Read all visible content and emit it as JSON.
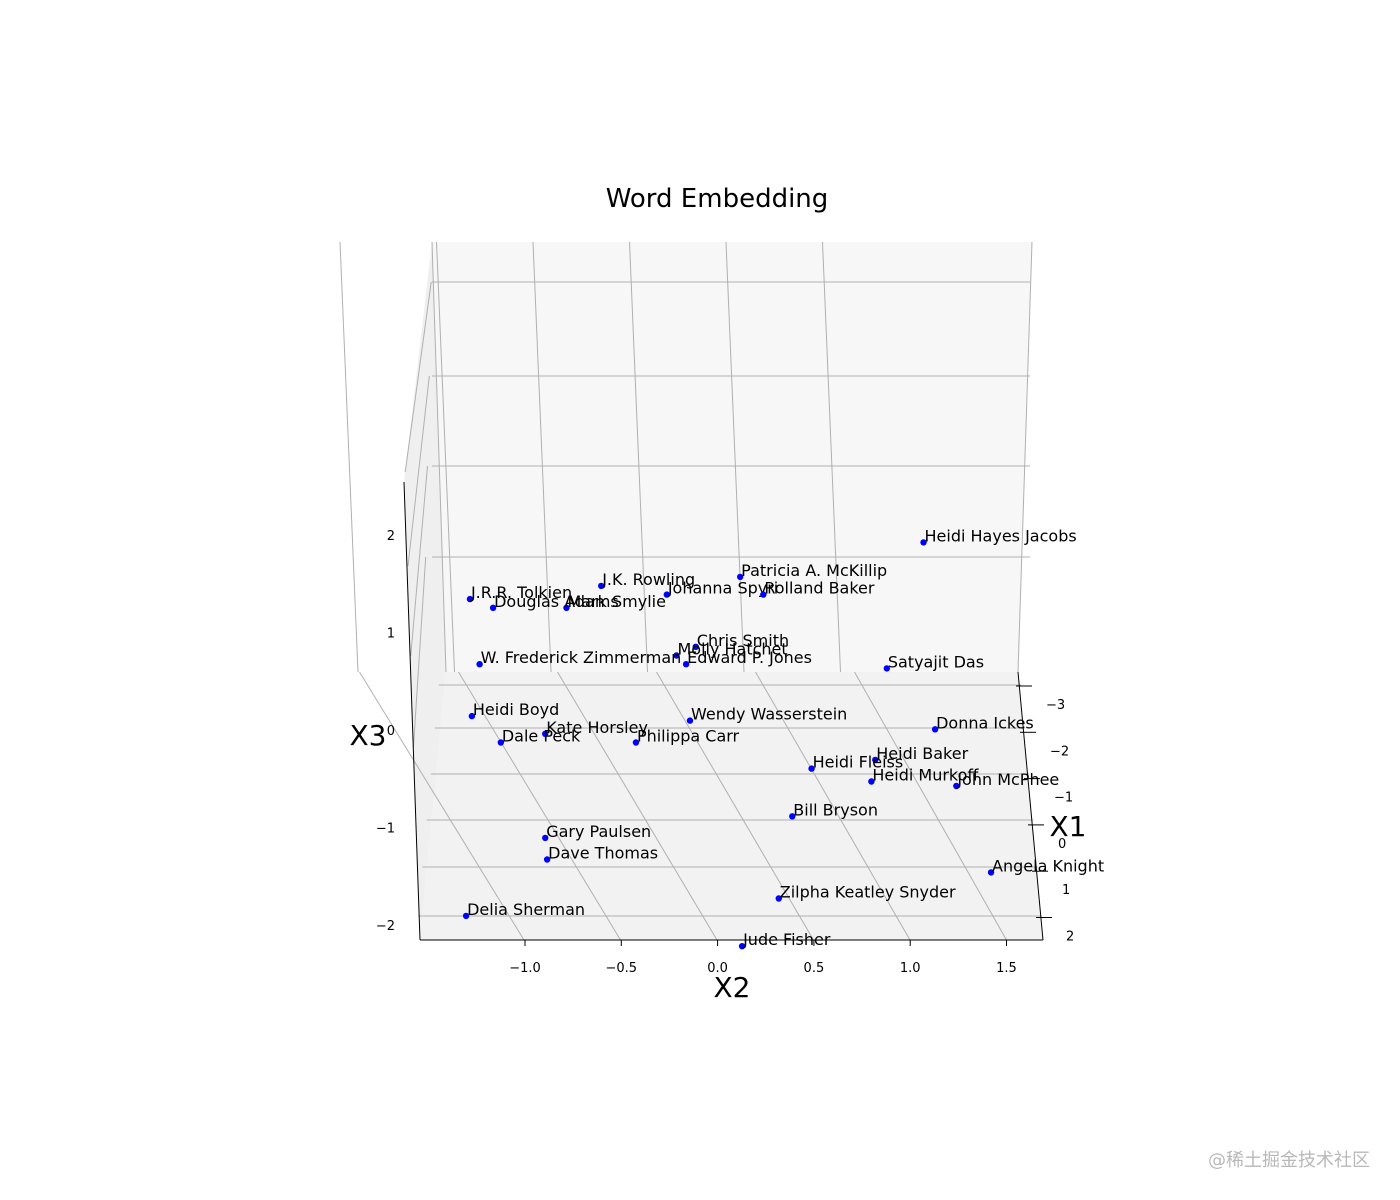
{
  "chart_data": {
    "type": "scatter",
    "projection": "3d",
    "title": "Word Embedding",
    "xlabel": "X1",
    "ylabel": "X2",
    "zlabel": "X3",
    "xlim": [
      -3,
      2
    ],
    "ylim": [
      -1.5,
      1.7
    ],
    "zlim": [
      -2,
      2.5
    ],
    "grid": true,
    "marker_color": "#0000ff",
    "x_ticks": [
      "−3",
      "−2",
      "−1",
      "0",
      "1",
      "2"
    ],
    "y_ticks": [
      "−1.0",
      "−0.5",
      "0.0",
      "0.5",
      "1.0",
      "1.5"
    ],
    "z_ticks": [
      "−2",
      "−1",
      "0",
      "1",
      "2"
    ],
    "points": [
      {
        "label": "Heidi Hayes Jacobs",
        "x1": 2.8,
        "x2": 1.07,
        "x3": 2.3
      },
      {
        "label": "Patricia A. McKillip",
        "x1": 2.3,
        "x2": 0.12,
        "x3": 1.9
      },
      {
        "label": "J.K. Rowling",
        "x1": 2.3,
        "x2": -0.6,
        "x3": 1.8
      },
      {
        "label": "Johanna Spyri",
        "x1": 2.2,
        "x2": -0.26,
        "x3": 1.7
      },
      {
        "label": "Rolland Baker",
        "x1": 2.2,
        "x2": 0.24,
        "x3": 1.7
      },
      {
        "label": "J.R.R. Tolkien",
        "x1": 2.2,
        "x2": -1.28,
        "x3": 1.65
      },
      {
        "label": "Mark Smylie",
        "x1": 2.1,
        "x2": -0.78,
        "x3": 1.55
      },
      {
        "label": "Douglas Adams",
        "x1": 2.1,
        "x2": -1.16,
        "x3": 1.55
      },
      {
        "label": "Chris   Smith",
        "x1": 1.6,
        "x2": -0.11,
        "x3": 1.1
      },
      {
        "label": "Molly Hatchet",
        "x1": 1.5,
        "x2": -0.21,
        "x3": 1.0
      },
      {
        "label": "Edward P. Jones",
        "x1": 1.4,
        "x2": -0.16,
        "x3": 0.9
      },
      {
        "label": "W. Frederick Zimmerman",
        "x1": 1.4,
        "x2": -1.23,
        "x3": 0.9
      },
      {
        "label": "Satyajit Das",
        "x1": 1.3,
        "x2": 0.88,
        "x3": 0.85
      },
      {
        "label": "Heidi Boyd",
        "x1": 0.7,
        "x2": -1.27,
        "x3": 0.3
      },
      {
        "label": "Wendy Wasserstein",
        "x1": 0.7,
        "x2": -0.14,
        "x3": 0.25
      },
      {
        "label": "Kate Horsley",
        "x1": 0.6,
        "x2": -0.89,
        "x3": 0.1
      },
      {
        "label": "Dale Peck",
        "x1": 0.5,
        "x2": -1.12,
        "x3": 0.0
      },
      {
        "label": "Philippa Carr",
        "x1": 0.5,
        "x2": -0.42,
        "x3": 0.0
      },
      {
        "label": "Donna Ickes",
        "x1": 0.6,
        "x2": 1.13,
        "x3": 0.15
      },
      {
        "label": "Heidi Baker",
        "x1": 0.3,
        "x2": 0.82,
        "x3": -0.2
      },
      {
        "label": "Heidi Fleiss",
        "x1": 0.2,
        "x2": 0.49,
        "x3": -0.3
      },
      {
        "label": "Heidi Murkoff",
        "x1": 0.0,
        "x2": 0.8,
        "x3": -0.45
      },
      {
        "label": "John McPhee",
        "x1": 0.0,
        "x2": 1.24,
        "x3": -0.5
      },
      {
        "label": "Bill Bryson",
        "x1": -0.4,
        "x2": 0.39,
        "x3": -0.85
      },
      {
        "label": "Gary Paulsen",
        "x1": -0.7,
        "x2": -0.89,
        "x3": -1.1
      },
      {
        "label": "Dave Thomas",
        "x1": -1.0,
        "x2": -0.88,
        "x3": -1.35
      },
      {
        "label": "Angela Knight",
        "x1": -1.2,
        "x2": 1.42,
        "x3": -1.5
      },
      {
        "label": "Zilpha Keatley Snyder",
        "x1": -1.5,
        "x2": 0.32,
        "x3": -1.8
      },
      {
        "label": "Delia Sherman",
        "x1": -1.7,
        "x2": -1.3,
        "x3": -2.0
      },
      {
        "label": "Jude Fisher",
        "x1": -2.1,
        "x2": 0.13,
        "x3": -2.35
      }
    ]
  },
  "watermark": "@稀土掘金技术社区"
}
